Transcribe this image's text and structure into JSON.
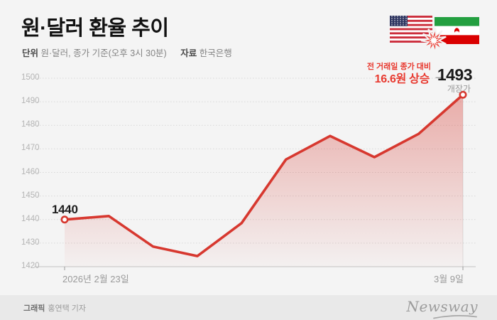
{
  "page": {
    "background": "#f4f4f4",
    "footer_band": "#e9e9e9"
  },
  "header": {
    "title": "원·달러 환율 추이",
    "unit_label": "단위",
    "unit_value": "원·달러, 종가 기준(오후 3시 30분)",
    "source_label": "자료",
    "source_value": "한국은행"
  },
  "chart_data": {
    "type": "line",
    "title": "원·달러 환율 추이",
    "series": [
      {
        "name": "원·달러 환율",
        "values": [
          1440,
          1441.5,
          1428.5,
          1424.5,
          1438.5,
          1465.5,
          1475.5,
          1466.5,
          1476.4,
          1493
        ]
      }
    ],
    "x_first_label": "2026년 2월 23일",
    "x_last_label": "3월 9일",
    "y_ticks": [
      1500,
      1490,
      1480,
      1470,
      1460,
      1450,
      1440,
      1430,
      1420
    ],
    "ylim": [
      1420,
      1500
    ],
    "grid": "horizontal dotted",
    "legend": "none",
    "line_color": "#d7382f",
    "accent_text_color": "#e8392f",
    "area_fill_top": "rgba(215,56,47,0.38)",
    "area_fill_bottom": "rgba(215,56,47,0.02)",
    "start_label": "1440",
    "end_label": "1493",
    "end_sublabel": "개장가",
    "callout_line1": "전 거래일 종가 대비",
    "callout_line2": "16.6원 상승",
    "callout_arrow": "→"
  },
  "footer": {
    "credit_label": "그래픽",
    "credit_value": "홍연택 기자",
    "brand": "Newsway"
  }
}
